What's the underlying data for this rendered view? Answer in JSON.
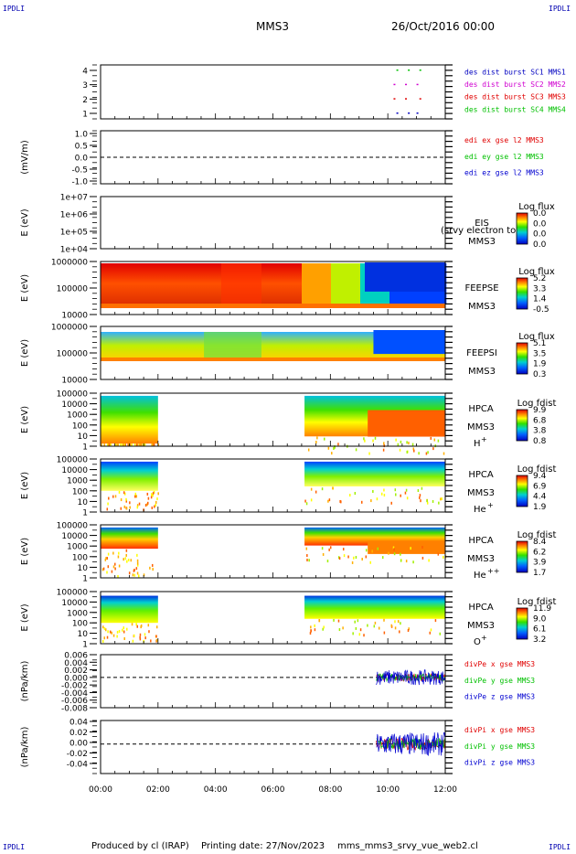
{
  "header": {
    "corner_label": "IPDLI",
    "mission": "MMS3",
    "date": "26/Oct/2016 00:00"
  },
  "footer": {
    "produced_by": "Produced by cl (IRAP)",
    "printing_date": "Printing date: 27/Nov/2023",
    "filename": "mms_mms3_srvy_vue_web2.cl"
  },
  "colors": {
    "mms1": "#0000c0",
    "mms2": "#d000d0",
    "mms3": "#e00000",
    "mms4": "#00c000",
    "x_comp": "#e00000",
    "y_comp": "#00c000",
    "z_comp": "#0000d0"
  },
  "chart_data": {
    "type": "heatmap",
    "x_time_range": [
      "00:00",
      "12:00"
    ],
    "x_ticks": [
      "00:00",
      "02:00",
      "04:00",
      "06:00",
      "08:00",
      "10:00",
      "12:00"
    ],
    "panels": [
      {
        "id": "burst",
        "type": "scatter",
        "yticks": [
          "4",
          "3",
          "2",
          "1"
        ],
        "ylim": [
          0.5,
          4.5
        ],
        "legend": [
          {
            "label": "des dist burst SC1 MMS1",
            "color_key": "mms1"
          },
          {
            "label": "des dist burst SC2 MMS2",
            "color_key": "mms2"
          },
          {
            "label": "des dist burst SC3 MMS3",
            "color_key": "mms3"
          },
          {
            "label": "des dist burst SC4 MMS4",
            "color_key": "mms4"
          }
        ],
        "markers": [
          {
            "level": 4,
            "color_key": "mms4",
            "x_hours": [
              10.3,
              10.7,
              11.1
            ]
          },
          {
            "level": 3,
            "color_key": "mms2",
            "x_hours": [
              10.2,
              10.6,
              11.0
            ]
          },
          {
            "level": 2,
            "color_key": "mms3",
            "x_hours": [
              10.2,
              10.6,
              11.1
            ]
          },
          {
            "level": 1,
            "color_key": "mms1",
            "x_hours": [
              10.3,
              10.7,
              11.0
            ]
          }
        ]
      },
      {
        "id": "edi",
        "type": "line",
        "ylabel": "(mV/m)",
        "yticks": [
          "1.0",
          "0.5",
          "0.0",
          "-0.5",
          "-1.0"
        ],
        "ylim": [
          -1.0,
          1.0
        ],
        "legend": [
          {
            "label": "edi ex gse l2 MMS3",
            "color_key": "x_comp"
          },
          {
            "label": "edi ey gse l2 MMS3",
            "color_key": "y_comp"
          },
          {
            "label": "edi ez gse l2 MMS3",
            "color_key": "z_comp"
          }
        ]
      },
      {
        "id": "eis",
        "type": "heatmap",
        "ylabel": "E (eV)",
        "yticks": [
          "1e+07",
          "1e+06",
          "1e+05",
          "1e+04"
        ],
        "ylim": [
          10000,
          10000000
        ],
        "instrument": "EIS",
        "overlay_text": "(srvy electron to",
        "spacecraft": "MMS3",
        "colorbar_title": "Log flux",
        "colorbar_ticks": [
          "0.0",
          "0.0",
          "0.0",
          "0.0"
        ]
      },
      {
        "id": "feeps_e",
        "type": "heatmap",
        "ylabel": "E (eV)",
        "yticks": [
          "1000000",
          "100000",
          "10000"
        ],
        "ylim": [
          10000,
          1000000
        ],
        "instrument": "FEEPSE",
        "spacecraft": "MMS3",
        "colorbar_title": "Log flux",
        "colorbar_ticks": [
          "5.2",
          "3.3",
          "1.4",
          "-0.5"
        ]
      },
      {
        "id": "feeps_i",
        "type": "heatmap",
        "ylabel": "E (eV)",
        "yticks": [
          "1000000",
          "100000",
          "10000"
        ],
        "ylim": [
          10000,
          1000000
        ],
        "instrument": "FEEPSI",
        "spacecraft": "MMS3",
        "colorbar_title": "Log flux",
        "colorbar_ticks": [
          "5.1",
          "3.5",
          "1.9",
          "0.3"
        ]
      },
      {
        "id": "hpca_h",
        "type": "heatmap",
        "ylabel": "E (eV)",
        "yticks": [
          "100000",
          "10000",
          "1000",
          "100",
          "10",
          "1"
        ],
        "ylim": [
          1,
          100000
        ],
        "instrument": "HPCA",
        "spacecraft": "MMS3",
        "species": "H",
        "charge": "+",
        "colorbar_title": "Log fdist",
        "colorbar_ticks": [
          "9.9",
          "6.8",
          "3.8",
          "0.8"
        ]
      },
      {
        "id": "hpca_he",
        "type": "heatmap",
        "ylabel": "E (eV)",
        "yticks": [
          "100000",
          "10000",
          "1000",
          "100",
          "10",
          "1"
        ],
        "ylim": [
          1,
          100000
        ],
        "instrument": "HPCA",
        "spacecraft": "MMS3",
        "species": "He",
        "charge": "+",
        "colorbar_title": "Log fdist",
        "colorbar_ticks": [
          "9.4",
          "6.9",
          "4.4",
          "1.9"
        ]
      },
      {
        "id": "hpca_he2",
        "type": "heatmap",
        "ylabel": "E (eV)",
        "yticks": [
          "100000",
          "10000",
          "1000",
          "100",
          "10",
          "1"
        ],
        "ylim": [
          1,
          100000
        ],
        "instrument": "HPCA",
        "spacecraft": "MMS3",
        "species": "He",
        "charge": "++",
        "colorbar_title": "Log fdist",
        "colorbar_ticks": [
          "8.4",
          "6.2",
          "3.9",
          "1.7"
        ]
      },
      {
        "id": "hpca_o",
        "type": "heatmap",
        "ylabel": "E (eV)",
        "yticks": [
          "100000",
          "10000",
          "1000",
          "100",
          "10",
          "1"
        ],
        "ylim": [
          1,
          100000
        ],
        "instrument": "HPCA",
        "spacecraft": "MMS3",
        "species": "O",
        "charge": "+",
        "colorbar_title": "Log fdist",
        "colorbar_ticks": [
          "11.9",
          "9.0",
          "6.1",
          "3.2"
        ]
      },
      {
        "id": "divpe",
        "type": "line",
        "ylabel": "(nPa/km)",
        "yticks": [
          "0.006",
          "0.004",
          "0.002",
          "0.000",
          "-0.002",
          "-0.004",
          "-0.006",
          "-0.008"
        ],
        "ylim": [
          -0.008,
          0.006
        ],
        "legend": [
          {
            "label": "divPe x gse MMS3",
            "color_key": "x_comp"
          },
          {
            "label": "divPe y gse MMS3",
            "color_key": "y_comp"
          },
          {
            "label": "divPe z gse MMS3",
            "color_key": "z_comp"
          }
        ],
        "data_start_hour": 9.6,
        "data_amplitude": 0.002
      },
      {
        "id": "divpi",
        "type": "line",
        "ylabel": "(nPa/km)",
        "yticks": [
          "0.04",
          "0.02",
          "0.00",
          "-0.02",
          "-0.04"
        ],
        "ylim": [
          -0.05,
          0.04
        ],
        "legend": [
          {
            "label": "divPi x gse MMS3",
            "color_key": "x_comp"
          },
          {
            "label": "divPi y gse MMS3",
            "color_key": "y_comp"
          },
          {
            "label": "divPi z gse MMS3",
            "color_key": "z_comp"
          }
        ],
        "data_start_hour": 9.6,
        "data_amplitude": 0.02
      }
    ]
  }
}
